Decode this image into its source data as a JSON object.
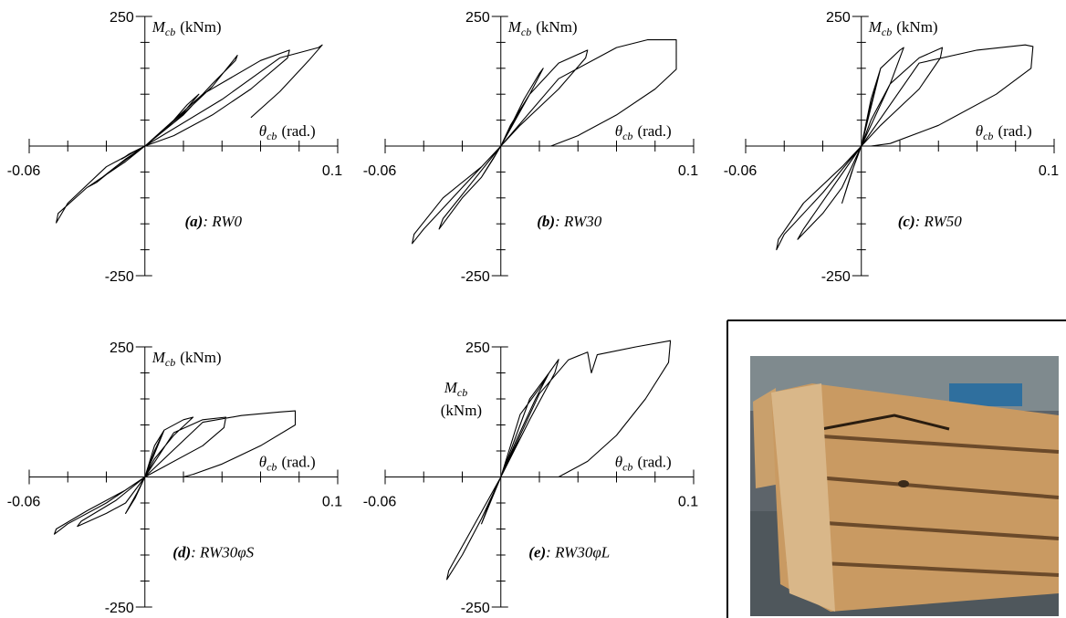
{
  "chart_data": [
    {
      "type": "line",
      "panel": "(a)",
      "title": ": RW0",
      "color": "#000000",
      "ylabel_symbol": "M",
      "ylabel_subscript": "cb",
      "ylabel_unit": "(kNm)",
      "xlabel_symbol": "θ",
      "xlabel_subscript": "cb",
      "xlabel_unit": "(rad.)",
      "xlim": [
        -0.06,
        0.1
      ],
      "ylim": [
        -250,
        250
      ],
      "xticks": [
        -0.06,
        0.1
      ],
      "yticks": [
        -250,
        250
      ],
      "x_minor_ticks": [
        -0.04,
        -0.02,
        0.02,
        0.04,
        0.06,
        0.08
      ],
      "y_minor_ticks": [
        -200,
        -150,
        -100,
        -50,
        50,
        100,
        150,
        200
      ],
      "x": [
        0,
        0.008,
        0.012,
        0.006,
        0,
        -0.008,
        -0.012,
        -0.006,
        0,
        0.015,
        0.022,
        0.028,
        0.02,
        0.008,
        0,
        -0.015,
        -0.025,
        -0.03,
        -0.022,
        -0.01,
        0,
        0.02,
        0.035,
        0.047,
        0.048,
        0.035,
        0.015,
        0,
        -0.02,
        -0.04,
        -0.046,
        -0.045,
        -0.03,
        -0.01,
        0,
        0.03,
        0.06,
        0.075,
        0.074,
        0.055,
        0.035,
        0.015,
        0,
        0.04,
        0.07,
        0.09,
        0.092,
        0.085,
        0.07,
        0.055
      ],
      "y": [
        0,
        25,
        40,
        20,
        0,
        -15,
        -25,
        -12,
        0,
        50,
        80,
        100,
        65,
        25,
        0,
        -40,
        -70,
        -80,
        -60,
        -25,
        0,
        60,
        120,
        165,
        175,
        115,
        45,
        0,
        -40,
        -110,
        -148,
        -130,
        -80,
        -30,
        0,
        100,
        165,
        185,
        170,
        110,
        60,
        20,
        0,
        90,
        170,
        190,
        195,
        165,
        105,
        55
      ]
    },
    {
      "type": "line",
      "panel": "(b)",
      "title": ": RW30",
      "color": "#000000",
      "ylabel_symbol": "M",
      "ylabel_subscript": "cb",
      "ylabel_unit": "(kNm)",
      "xlabel_symbol": "θ",
      "xlabel_subscript": "cb",
      "xlabel_unit": "(rad.)",
      "xlim": [
        -0.06,
        0.1
      ],
      "ylim": [
        -250,
        250
      ],
      "xticks": [
        -0.06,
        0.1
      ],
      "yticks": [
        -250,
        250
      ],
      "x_minor_ticks": [
        -0.04,
        -0.02,
        0.02,
        0.04,
        0.06,
        0.08
      ],
      "y_minor_ticks": [
        -200,
        -150,
        -100,
        -50,
        50,
        100,
        150,
        200
      ],
      "x": [
        0,
        0.005,
        0.01,
        0.005,
        0,
        -0.005,
        -0.01,
        -0.004,
        0,
        0.012,
        0.02,
        0.022,
        0.015,
        0.005,
        0,
        -0.01,
        -0.02,
        -0.032,
        -0.03,
        -0.015,
        0,
        0.015,
        0.03,
        0.045,
        0.044,
        0.03,
        0.01,
        0,
        -0.02,
        -0.04,
        -0.046,
        -0.045,
        -0.03,
        -0.01,
        0,
        0.03,
        0.06,
        0.076,
        0.091,
        0.091,
        0.08,
        0.06,
        0.04,
        0.026
      ],
      "y": [
        0,
        40,
        70,
        35,
        0,
        -30,
        -60,
        -25,
        0,
        90,
        140,
        150,
        100,
        40,
        0,
        -60,
        -100,
        -160,
        -140,
        -70,
        0,
        100,
        160,
        185,
        170,
        110,
        40,
        0,
        -80,
        -160,
        -188,
        -170,
        -100,
        -40,
        0,
        130,
        190,
        205,
        205,
        148,
        110,
        60,
        20,
        0
      ]
    },
    {
      "type": "line",
      "panel": "(c)",
      "title": ": RW50",
      "color": "#000000",
      "ylabel_symbol": "M",
      "ylabel_subscript": "cb",
      "ylabel_unit": "(kNm)",
      "xlabel_symbol": "θ",
      "xlabel_subscript": "cb",
      "xlabel_unit": "(rad.)",
      "xlim": [
        -0.06,
        0.1
      ],
      "ylim": [
        -250,
        250
      ],
      "xticks": [
        -0.06,
        0.1
      ],
      "yticks": [
        -250,
        250
      ],
      "x_minor_ticks": [
        -0.04,
        -0.02,
        0.02,
        0.04,
        0.06,
        0.08
      ],
      "y_minor_ticks": [
        -200,
        -150,
        -100,
        -50,
        50,
        100,
        150,
        200
      ],
      "x": [
        0,
        0.005,
        0.01,
        0.005,
        0,
        -0.005,
        -0.01,
        -0.004,
        0,
        0.01,
        0.02,
        0.022,
        0.015,
        0.005,
        0,
        -0.01,
        -0.02,
        -0.033,
        -0.03,
        -0.015,
        0,
        0.015,
        0.03,
        0.042,
        0.041,
        0.03,
        0.01,
        0,
        -0.02,
        -0.04,
        -0.044,
        -0.043,
        -0.03,
        -0.01,
        0,
        0.03,
        0.06,
        0.085,
        0.089,
        0.088,
        0.07,
        0.04,
        0.015,
        0.005
      ],
      "y": [
        0,
        80,
        150,
        90,
        0,
        -50,
        -110,
        -40,
        0,
        150,
        185,
        190,
        120,
        50,
        0,
        -80,
        -130,
        -180,
        -160,
        -80,
        0,
        120,
        170,
        190,
        170,
        110,
        40,
        0,
        -90,
        -170,
        -200,
        -180,
        -110,
        -40,
        0,
        160,
        185,
        195,
        192,
        150,
        100,
        40,
        5,
        0
      ]
    },
    {
      "type": "line",
      "panel": "(d)",
      "title": ": RW30φS",
      "color": "#000000",
      "ylabel_symbol": "M",
      "ylabel_subscript": "cb",
      "ylabel_unit": "(kNm)",
      "xlabel_symbol": "θ",
      "xlabel_subscript": "cb",
      "xlabel_unit": "(rad.)",
      "xlim": [
        -0.06,
        0.1
      ],
      "ylim": [
        -250,
        250
      ],
      "xticks": [
        -0.06,
        0.1
      ],
      "yticks": [
        -250,
        250
      ],
      "x_minor_ticks": [
        -0.04,
        -0.02,
        0.02,
        0.04,
        0.06,
        0.08
      ],
      "y_minor_ticks": [
        -200,
        -150,
        -100,
        -50,
        50,
        100,
        150,
        200
      ],
      "x": [
        0,
        0.005,
        0.01,
        0.005,
        0,
        -0.005,
        -0.01,
        -0.004,
        0,
        0.01,
        0.02,
        0.025,
        0.015,
        0.005,
        0,
        -0.01,
        -0.02,
        -0.035,
        -0.033,
        -0.015,
        0,
        0.015,
        0.03,
        0.042,
        0.041,
        0.03,
        0.01,
        0,
        -0.02,
        -0.04,
        -0.047,
        -0.046,
        -0.03,
        -0.01,
        0,
        0.03,
        0.05,
        0.07,
        0.078,
        0.078,
        0.06,
        0.04,
        0.025,
        0.02
      ],
      "y": [
        0,
        60,
        90,
        50,
        0,
        -40,
        -70,
        -30,
        0,
        90,
        110,
        115,
        80,
        35,
        0,
        -50,
        -70,
        -95,
        -85,
        -45,
        0,
        85,
        110,
        115,
        95,
        60,
        20,
        0,
        -50,
        -90,
        -110,
        -100,
        -65,
        -25,
        0,
        105,
        118,
        125,
        127,
        100,
        60,
        25,
        5,
        0
      ]
    },
    {
      "type": "line",
      "panel": "(e)",
      "title": ": RW30φL",
      "color": "#000000",
      "ylabel_symbol": "M",
      "ylabel_subscript": "cb",
      "ylabel_unit": "(kNm)",
      "xlabel_symbol": "θ",
      "xlabel_subscript": "cb",
      "xlabel_unit": "(rad.)",
      "xlim": [
        -0.06,
        0.1
      ],
      "ylim": [
        -250,
        250
      ],
      "xticks": [
        -0.06,
        0.1
      ],
      "yticks": [
        -250,
        250
      ],
      "x_minor_ticks": [
        -0.04,
        -0.02,
        0.02,
        0.04,
        0.06,
        0.08
      ],
      "y_minor_ticks": [
        -200,
        -150,
        -100,
        -50,
        50,
        100,
        150,
        200
      ],
      "x": [
        0,
        0.005,
        0.01,
        0.006,
        0,
        -0.005,
        -0.01,
        -0.005,
        0,
        0.01,
        0.02,
        0.025,
        0.018,
        0.008,
        0,
        -0.01,
        -0.02,
        -0.028,
        -0.027,
        -0.015,
        0,
        0.015,
        0.025,
        0.03,
        0.028,
        0.015,
        0,
        0.02,
        0.035,
        0.045,
        0.047,
        0.05,
        0.07,
        0.088,
        0.087,
        0.075,
        0.06,
        0.045,
        0.03
      ],
      "y": [
        0,
        40,
        80,
        45,
        0,
        -40,
        -90,
        -45,
        0,
        120,
        170,
        200,
        150,
        70,
        0,
        -80,
        -150,
        -197,
        -180,
        -100,
        0,
        150,
        200,
        226,
        200,
        110,
        0,
        160,
        225,
        240,
        200,
        235,
        250,
        262,
        220,
        150,
        80,
        30,
        0
      ]
    }
  ]
}
